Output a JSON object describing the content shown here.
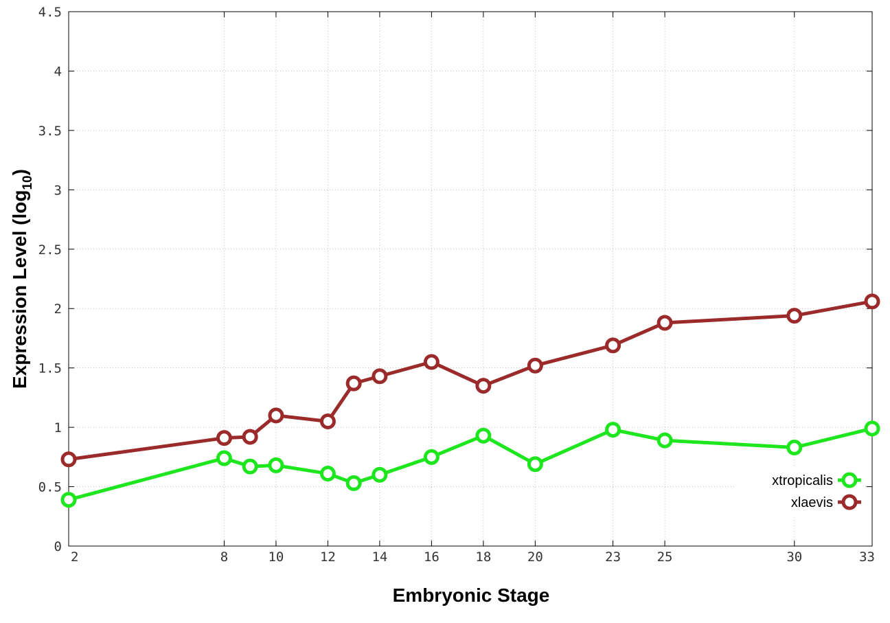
{
  "chart_data": {
    "type": "line",
    "xlabel": "Embryonic Stage",
    "ylabel_main": "Expression Level (log",
    "ylabel_sub": "10",
    "ylabel_close": ")",
    "xlim": [
      2,
      33
    ],
    "ylim": [
      0,
      4.5
    ],
    "x_ticks": [
      {
        "value": 2,
        "label": "2"
      },
      {
        "value": 8,
        "label": "8"
      },
      {
        "value": 10,
        "label": "10"
      },
      {
        "value": 12,
        "label": "12"
      },
      {
        "value": 14,
        "label": "14"
      },
      {
        "value": 16,
        "label": "16"
      },
      {
        "value": 18,
        "label": "18"
      },
      {
        "value": 20,
        "label": "20"
      },
      {
        "value": 23,
        "label": "23"
      },
      {
        "value": 25,
        "label": "25"
      },
      {
        "value": 30,
        "label": "30"
      },
      {
        "value": 33,
        "label": "33"
      }
    ],
    "y_ticks": [
      {
        "value": 0,
        "label": "0"
      },
      {
        "value": 0.5,
        "label": "0.5"
      },
      {
        "value": 1,
        "label": "1"
      },
      {
        "value": 1.5,
        "label": "1.5"
      },
      {
        "value": 2,
        "label": "2"
      },
      {
        "value": 2.5,
        "label": "2.5"
      },
      {
        "value": 3,
        "label": "3"
      },
      {
        "value": 3.5,
        "label": "3.5"
      },
      {
        "value": 4,
        "label": "4"
      },
      {
        "value": 4.5,
        "label": "4.5"
      }
    ],
    "grid": true,
    "legend_position": "bottom-right",
    "series": [
      {
        "name": "xtropicalis",
        "color": "#1ee61e",
        "x": [
          2,
          8,
          9,
          10,
          12,
          13,
          14,
          16,
          18,
          20,
          23,
          25,
          30,
          33
        ],
        "y": [
          0.39,
          0.74,
          0.67,
          0.68,
          0.61,
          0.53,
          0.6,
          0.75,
          0.93,
          0.69,
          0.98,
          0.89,
          0.83,
          0.99
        ]
      },
      {
        "name": "xlaevis",
        "color": "#9b2a2a",
        "x": [
          2,
          8,
          9,
          10,
          12,
          13,
          14,
          16,
          18,
          20,
          23,
          25,
          30,
          33
        ],
        "y": [
          0.73,
          0.91,
          0.92,
          1.1,
          1.05,
          1.37,
          1.43,
          1.55,
          1.35,
          1.52,
          1.69,
          1.88,
          1.94,
          2.06
        ]
      }
    ]
  }
}
